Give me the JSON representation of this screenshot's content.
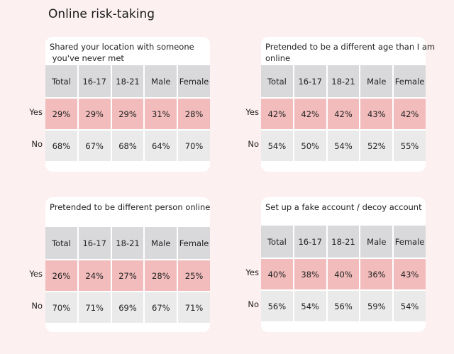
{
  "title": "Online risk-taking",
  "row_labels": {
    "yes": "Yes",
    "no": "No"
  },
  "chart_data": [
    {
      "type": "table",
      "title": "Shared your location with someone you've never met",
      "title_lines": [
        "Shared your location with someone",
        " you've never met"
      ],
      "columns": [
        "Total",
        "16-17",
        "18-21",
        "Male",
        "Female"
      ],
      "rows": [
        {
          "label": "Yes",
          "values": [
            "29%",
            "29%",
            "29%",
            "31%",
            "28%"
          ]
        },
        {
          "label": "No",
          "values": [
            "68%",
            "67%",
            "68%",
            "64%",
            "70%"
          ]
        }
      ]
    },
    {
      "type": "table",
      "title": "Pretended to be a different age than I am online",
      "title_lines": [
        "Pretended to be a different age than I am",
        "online"
      ],
      "columns": [
        "Total",
        "16-17",
        "18-21",
        "Male",
        "Female"
      ],
      "rows": [
        {
          "label": "Yes",
          "values": [
            "42%",
            "42%",
            "42%",
            "43%",
            "42%"
          ]
        },
        {
          "label": "No",
          "values": [
            "54%",
            "50%",
            "54%",
            "52%",
            "55%"
          ]
        }
      ]
    },
    {
      "type": "table",
      "title": "Pretended to be different person online",
      "title_lines": [
        "Pretended to be different person online"
      ],
      "columns": [
        "Total",
        "16-17",
        "18-21",
        "Male",
        "Female"
      ],
      "rows": [
        {
          "label": "Yes",
          "values": [
            "26%",
            "24%",
            "27%",
            "28%",
            "25%"
          ]
        },
        {
          "label": "No",
          "values": [
            "70%",
            "71%",
            "69%",
            "67%",
            "71%"
          ]
        }
      ]
    },
    {
      "type": "table",
      "title": "Set up a fake account / decoy account",
      "title_lines": [
        "Set up a fake account / decoy account"
      ],
      "columns": [
        "Total",
        "16-17",
        "18-21",
        "Male",
        "Female"
      ],
      "rows": [
        {
          "label": "Yes",
          "values": [
            "40%",
            "38%",
            "40%",
            "36%",
            "43%"
          ]
        },
        {
          "label": "No",
          "values": [
            "56%",
            "54%",
            "56%",
            "59%",
            "54%"
          ]
        }
      ]
    }
  ]
}
